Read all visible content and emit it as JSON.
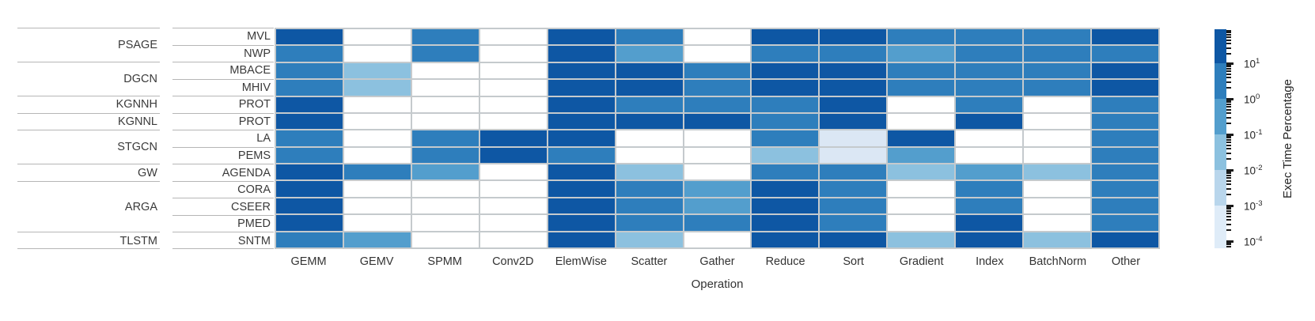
{
  "chart_data": {
    "type": "heatmap",
    "xlabel": "Operation",
    "colorbar_label": "Exec Time Percentage",
    "color_scale": "log",
    "columns": [
      "GEMM",
      "GEMV",
      "SPMM",
      "Conv2D",
      "ElemWise",
      "Scatter",
      "Gather",
      "Reduce",
      "Sort",
      "Gradient",
      "Index",
      "BatchNorm",
      "Other"
    ],
    "groups": [
      {
        "label": "PSAGE",
        "rows": [
          "MVL",
          "NWP"
        ]
      },
      {
        "label": "DGCN",
        "rows": [
          "MBACE",
          "MHIV"
        ]
      },
      {
        "label": "KGNNH",
        "rows": [
          "PROT"
        ]
      },
      {
        "label": "KGNNL",
        "rows": [
          "PROT"
        ]
      },
      {
        "label": "STGCN",
        "rows": [
          "LA",
          "PEMS"
        ]
      },
      {
        "label": "GW",
        "rows": [
          "AGENDA"
        ]
      },
      {
        "label": "ARGA",
        "rows": [
          "CORA",
          "CSEER",
          "PMED"
        ]
      },
      {
        "label": "TLSTM",
        "rows": [
          "SNTM"
        ]
      }
    ],
    "row_labels": [
      "MVL",
      "NWP",
      "MBACE",
      "MHIV",
      "PROT",
      "PROT",
      "LA",
      "PEMS",
      "AGENDA",
      "CORA",
      "CSEER",
      "PMED",
      "SNTM"
    ],
    "level_colors": [
      "#ffffff",
      "#dbe7f4",
      "#8cc1df",
      "#539ecd",
      "#2e7ebc",
      "#0e57a4"
    ],
    "level_value_ranges": [
      "no data (blank)",
      "~1e-4 to 1e-3 %",
      "~0.01 to 0.1 %",
      "~0.1 to 1 %",
      "~1 to 10 %",
      "> 10 %"
    ],
    "cells": [
      [
        5,
        0,
        4,
        0,
        5,
        4,
        0,
        5,
        5,
        4,
        4,
        4,
        5
      ],
      [
        4,
        0,
        4,
        0,
        5,
        3,
        0,
        4,
        4,
        3,
        4,
        4,
        4
      ],
      [
        4,
        2,
        0,
        0,
        5,
        5,
        4,
        5,
        5,
        4,
        4,
        4,
        5
      ],
      [
        4,
        2,
        0,
        0,
        5,
        5,
        4,
        5,
        5,
        4,
        4,
        4,
        5
      ],
      [
        5,
        0,
        0,
        0,
        5,
        4,
        4,
        4,
        5,
        0,
        4,
        0,
        4
      ],
      [
        5,
        0,
        0,
        0,
        5,
        5,
        5,
        4,
        5,
        0,
        5,
        0,
        4
      ],
      [
        4,
        0,
        4,
        5,
        5,
        0,
        0,
        4,
        1,
        5,
        0,
        0,
        4
      ],
      [
        4,
        0,
        4,
        5,
        4,
        0,
        0,
        2,
        1,
        3,
        0,
        0,
        4
      ],
      [
        5,
        4,
        3,
        0,
        5,
        2,
        0,
        4,
        4,
        2,
        3,
        2,
        4
      ],
      [
        5,
        0,
        0,
        0,
        5,
        4,
        3,
        5,
        4,
        0,
        4,
        0,
        4
      ],
      [
        5,
        0,
        0,
        0,
        5,
        4,
        3,
        5,
        4,
        0,
        4,
        0,
        4
      ],
      [
        5,
        0,
        0,
        0,
        5,
        4,
        4,
        5,
        4,
        0,
        5,
        0,
        4
      ],
      [
        4,
        3,
        0,
        0,
        5,
        2,
        0,
        5,
        5,
        2,
        5,
        2,
        5
      ]
    ],
    "colorbar": {
      "band_colors": [
        "#0e57a4",
        "#2e7ebc",
        "#539ecd",
        "#8cc1df",
        "#b9d6ec",
        "#dfecf8"
      ],
      "ticks": [
        {
          "base": "10",
          "exp": "1"
        },
        {
          "base": "10",
          "exp": "0"
        },
        {
          "base": "10",
          "exp": "-1"
        },
        {
          "base": "10",
          "exp": "-2"
        },
        {
          "base": "10",
          "exp": "-3"
        },
        {
          "base": "10",
          "exp": "-4"
        }
      ]
    }
  }
}
